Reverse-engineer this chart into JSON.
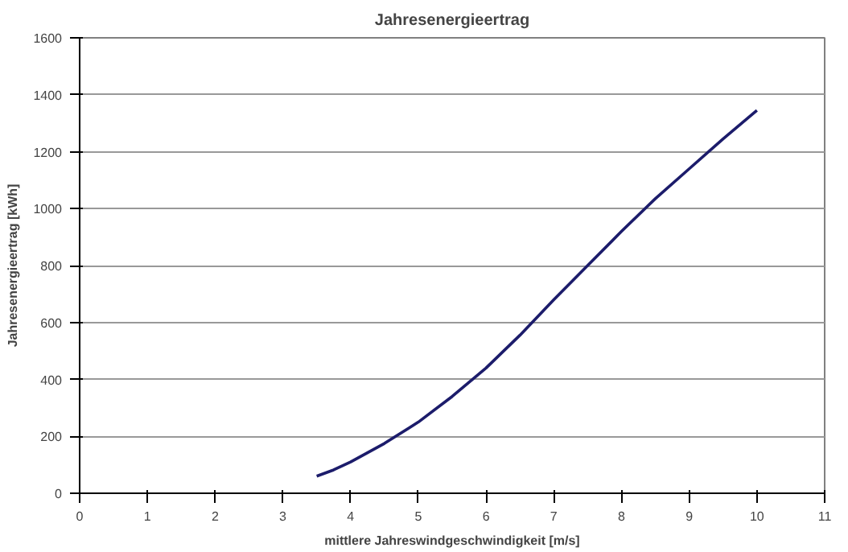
{
  "chart_data": {
    "type": "line",
    "title": "Jahresenergieertrag",
    "xlabel": "mittlere Jahreswindgeschwindigkeit [m/s]",
    "ylabel": "Jahresenergieertrag [kWh]",
    "x": [
      3.5,
      3.75,
      4,
      4.5,
      5,
      5.5,
      6,
      6.5,
      7,
      7.5,
      8,
      8.5,
      9,
      9.5,
      10
    ],
    "series": [
      {
        "color": "#1c1c6b",
        "values": [
          60,
          82,
          110,
          175,
          250,
          340,
          440,
          555,
          680,
          800,
          920,
          1035,
          1140,
          1245,
          1345
        ]
      }
    ],
    "xlim": [
      0,
      11
    ],
    "xticks": [
      0,
      1,
      2,
      3,
      4,
      5,
      6,
      7,
      8,
      9,
      10,
      11
    ],
    "ylim": [
      0,
      1600
    ],
    "yticks": [
      0,
      200,
      400,
      600,
      800,
      1000,
      1200,
      1400,
      1600
    ],
    "grid": "y",
    "marker": "none",
    "line_style": "solid"
  }
}
